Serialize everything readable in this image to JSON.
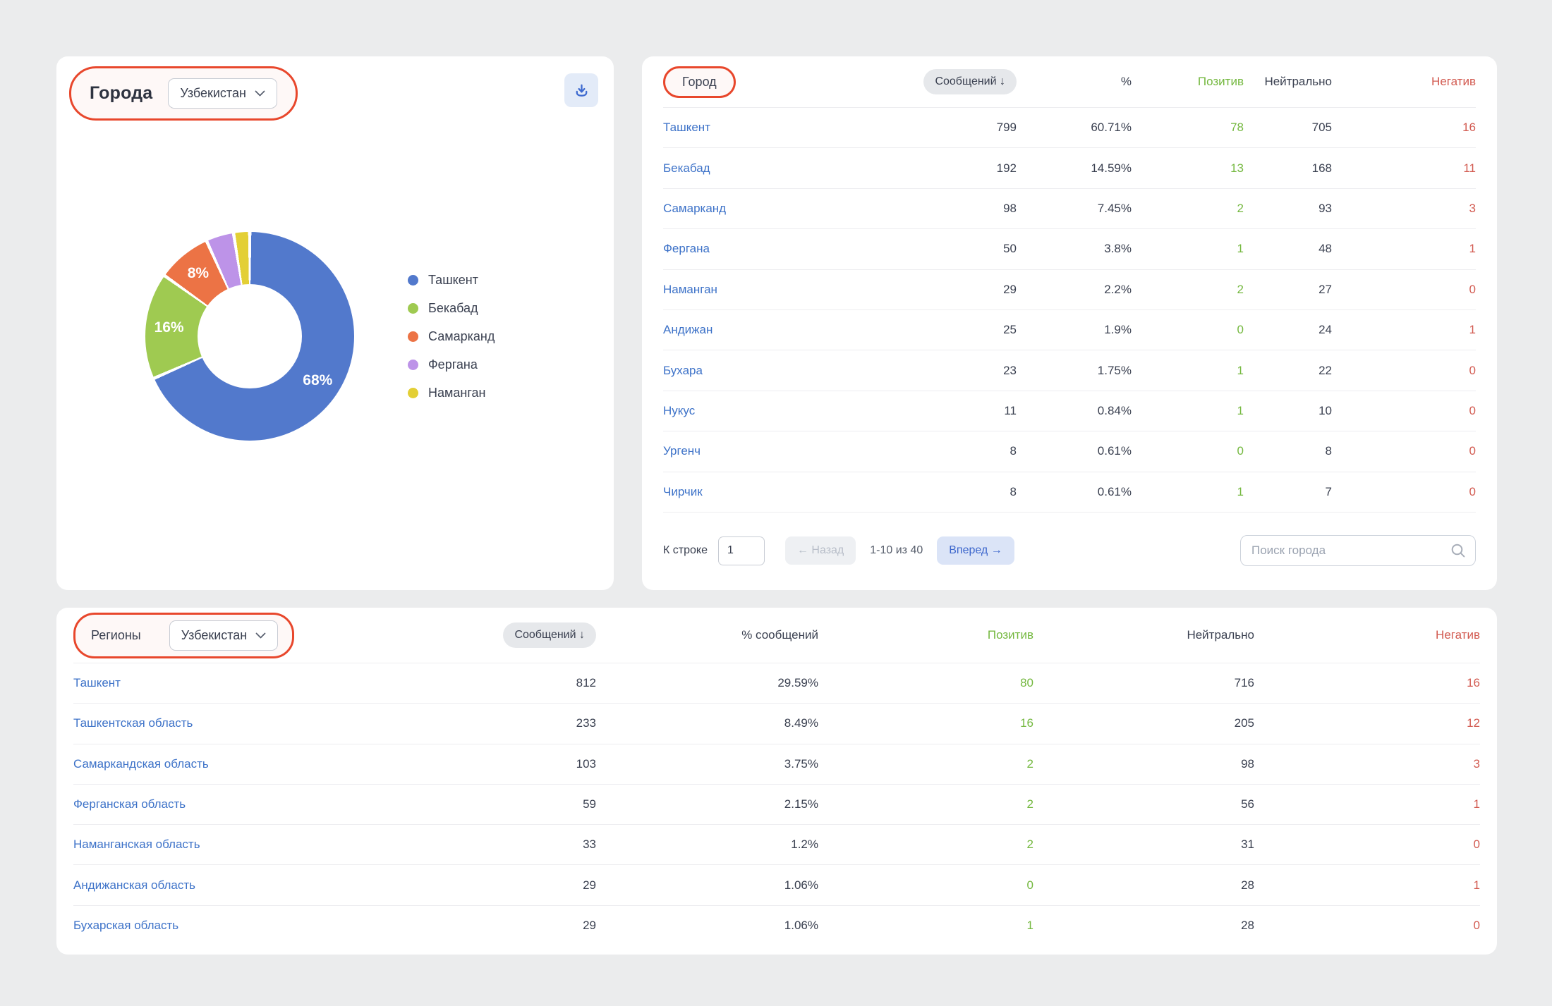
{
  "colors": {
    "page_bg": "#ebeced",
    "annotation": "#e8472c",
    "link": "#3d72c8",
    "positive": "#74b83f",
    "negative": "#d25a50",
    "pill_bg": "#e6e8eb",
    "forward_bg": "#dbe4f7",
    "forward_text": "#3c66cc",
    "back_bg": "#eef0f3",
    "back_text": "#b7bdc8",
    "download_bg": "#e3ebf8",
    "download_icon": "#3e6ad0"
  },
  "chart_data": {
    "type": "pie",
    "donut": true,
    "title": "Города",
    "labels": [
      "Ташкент",
      "Бекабад",
      "Самарканд",
      "Фергана",
      "Наманган"
    ],
    "values": [
      799,
      192,
      98,
      50,
      29
    ],
    "pct_labels": [
      "68%",
      "16%",
      "8%",
      "",
      ""
    ],
    "colors": [
      "#5279cc",
      "#9fca51",
      "#ec7345",
      "#bd93e8",
      "#e3cf35"
    ],
    "legend_position": "right"
  },
  "cities_card": {
    "title": "Города",
    "country": "Узбекистан",
    "download_icon": "download-icon"
  },
  "city_table": {
    "headers": {
      "city": "Город",
      "messages": "Сообщений ↓",
      "percent": "%",
      "positive": "Позитив",
      "neutral": "Нейтрально",
      "negative": "Негатив"
    },
    "rows": [
      {
        "name": "Ташкент",
        "messages": "799",
        "percent": "60.71%",
        "positive": "78",
        "neutral": "705",
        "negative": "16"
      },
      {
        "name": "Бекабад",
        "messages": "192",
        "percent": "14.59%",
        "positive": "13",
        "neutral": "168",
        "negative": "11"
      },
      {
        "name": "Самарканд",
        "messages": "98",
        "percent": "7.45%",
        "positive": "2",
        "neutral": "93",
        "negative": "3"
      },
      {
        "name": "Фергана",
        "messages": "50",
        "percent": "3.8%",
        "positive": "1",
        "neutral": "48",
        "negative": "1"
      },
      {
        "name": "Наманган",
        "messages": "29",
        "percent": "2.2%",
        "positive": "2",
        "neutral": "27",
        "negative": "0"
      },
      {
        "name": "Андижан",
        "messages": "25",
        "percent": "1.9%",
        "positive": "0",
        "neutral": "24",
        "negative": "1"
      },
      {
        "name": "Бухара",
        "messages": "23",
        "percent": "1.75%",
        "positive": "1",
        "neutral": "22",
        "negative": "0"
      },
      {
        "name": "Нукус",
        "messages": "11",
        "percent": "0.84%",
        "positive": "1",
        "neutral": "10",
        "negative": "0"
      },
      {
        "name": "Ургенч",
        "messages": "8",
        "percent": "0.61%",
        "positive": "0",
        "neutral": "8",
        "negative": "0"
      },
      {
        "name": "Чирчик",
        "messages": "8",
        "percent": "0.61%",
        "positive": "1",
        "neutral": "7",
        "negative": "0"
      }
    ],
    "footer": {
      "goto_label": "К строке",
      "goto_value": "1",
      "back_label": "← Назад",
      "range_label": "1-10 из 40",
      "forward_label": "Вперед →",
      "search_placeholder": "Поиск города"
    }
  },
  "regions_card": {
    "title": "Регионы",
    "country": "Узбекистан",
    "headers": {
      "messages": "Сообщений ↓",
      "percent": "% сообщений",
      "positive": "Позитив",
      "neutral": "Нейтрально",
      "negative": "Негатив"
    },
    "rows": [
      {
        "name": "Ташкент",
        "messages": "812",
        "percent": "29.59%",
        "positive": "80",
        "neutral": "716",
        "negative": "16"
      },
      {
        "name": "Ташкентская область",
        "messages": "233",
        "percent": "8.49%",
        "positive": "16",
        "neutral": "205",
        "negative": "12"
      },
      {
        "name": "Самаркандская область",
        "messages": "103",
        "percent": "3.75%",
        "positive": "2",
        "neutral": "98",
        "negative": "3"
      },
      {
        "name": "Ферганская область",
        "messages": "59",
        "percent": "2.15%",
        "positive": "2",
        "neutral": "56",
        "negative": "1"
      },
      {
        "name": "Наманганская область",
        "messages": "33",
        "percent": "1.2%",
        "positive": "2",
        "neutral": "31",
        "negative": "0"
      },
      {
        "name": "Андижанская область",
        "messages": "29",
        "percent": "1.06%",
        "positive": "0",
        "neutral": "28",
        "negative": "1"
      },
      {
        "name": "Бухарская область",
        "messages": "29",
        "percent": "1.06%",
        "positive": "1",
        "neutral": "28",
        "negative": "0"
      }
    ]
  }
}
